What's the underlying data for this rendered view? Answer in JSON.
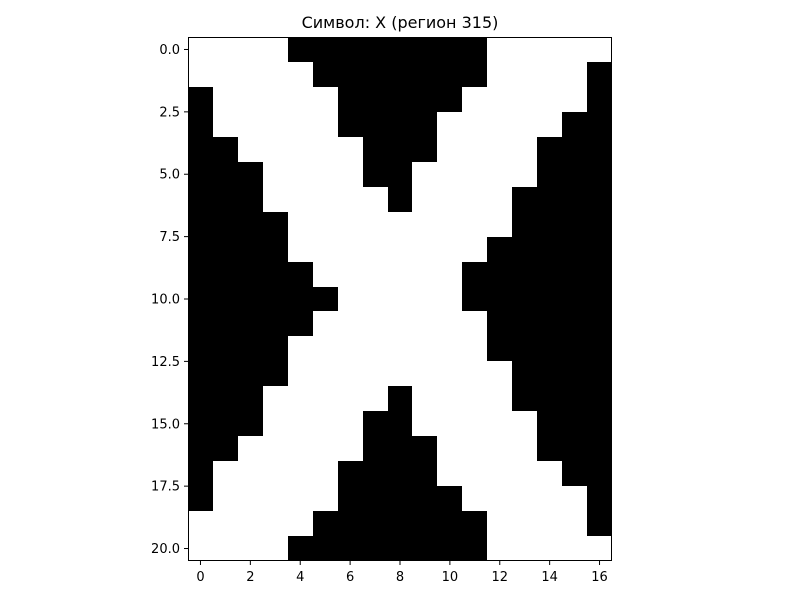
{
  "chart_data": {
    "type": "heatmap",
    "title": "Символ: X (регион 315)",
    "xlabel": "",
    "ylabel": "",
    "colormap": "binary",
    "colors": {
      "on": "#000000",
      "off": "#ffffff"
    },
    "grid": false,
    "xlim": [
      -0.5,
      16.5
    ],
    "ylim": [
      20.5,
      -0.5
    ],
    "x_ticks": [
      0,
      2,
      4,
      6,
      8,
      10,
      12,
      14,
      16
    ],
    "x_tick_labels": [
      "0",
      "2",
      "4",
      "6",
      "8",
      "10",
      "12",
      "14",
      "16"
    ],
    "y_ticks": [
      0,
      2.5,
      5,
      7.5,
      10,
      12.5,
      15,
      17.5,
      20
    ],
    "y_tick_labels": [
      "0.0",
      "2.5",
      "5.0",
      "7.5",
      "10.0",
      "12.5",
      "15.0",
      "17.5",
      "20.0"
    ],
    "rows": [
      [
        0,
        0,
        0,
        0,
        1,
        1,
        1,
        1,
        1,
        1,
        1,
        1,
        0,
        0,
        0,
        0,
        0
      ],
      [
        0,
        0,
        0,
        0,
        0,
        1,
        1,
        1,
        1,
        1,
        1,
        1,
        0,
        0,
        0,
        0,
        1
      ],
      [
        1,
        0,
        0,
        0,
        0,
        0,
        1,
        1,
        1,
        1,
        1,
        0,
        0,
        0,
        0,
        0,
        1
      ],
      [
        1,
        0,
        0,
        0,
        0,
        0,
        1,
        1,
        1,
        1,
        0,
        0,
        0,
        0,
        0,
        1,
        1
      ],
      [
        1,
        1,
        0,
        0,
        0,
        0,
        0,
        1,
        1,
        1,
        0,
        0,
        0,
        0,
        1,
        1,
        1
      ],
      [
        1,
        1,
        1,
        0,
        0,
        0,
        0,
        1,
        1,
        0,
        0,
        0,
        0,
        0,
        1,
        1,
        1
      ],
      [
        1,
        1,
        1,
        0,
        0,
        0,
        0,
        0,
        1,
        0,
        0,
        0,
        0,
        1,
        1,
        1,
        1
      ],
      [
        1,
        1,
        1,
        1,
        0,
        0,
        0,
        0,
        0,
        0,
        0,
        0,
        0,
        1,
        1,
        1,
        1
      ],
      [
        1,
        1,
        1,
        1,
        0,
        0,
        0,
        0,
        0,
        0,
        0,
        0,
        1,
        1,
        1,
        1,
        1
      ],
      [
        1,
        1,
        1,
        1,
        1,
        0,
        0,
        0,
        0,
        0,
        0,
        1,
        1,
        1,
        1,
        1,
        1
      ],
      [
        1,
        1,
        1,
        1,
        1,
        1,
        0,
        0,
        0,
        0,
        0,
        1,
        1,
        1,
        1,
        1,
        1
      ],
      [
        1,
        1,
        1,
        1,
        1,
        0,
        0,
        0,
        0,
        0,
        0,
        0,
        1,
        1,
        1,
        1,
        1
      ],
      [
        1,
        1,
        1,
        1,
        0,
        0,
        0,
        0,
        0,
        0,
        0,
        0,
        1,
        1,
        1,
        1,
        1
      ],
      [
        1,
        1,
        1,
        1,
        0,
        0,
        0,
        0,
        0,
        0,
        0,
        0,
        0,
        1,
        1,
        1,
        1
      ],
      [
        1,
        1,
        1,
        0,
        0,
        0,
        0,
        0,
        1,
        0,
        0,
        0,
        0,
        1,
        1,
        1,
        1
      ],
      [
        1,
        1,
        1,
        0,
        0,
        0,
        0,
        1,
        1,
        0,
        0,
        0,
        0,
        0,
        1,
        1,
        1
      ],
      [
        1,
        1,
        0,
        0,
        0,
        0,
        0,
        1,
        1,
        1,
        0,
        0,
        0,
        0,
        1,
        1,
        1
      ],
      [
        1,
        0,
        0,
        0,
        0,
        0,
        1,
        1,
        1,
        1,
        0,
        0,
        0,
        0,
        0,
        1,
        1
      ],
      [
        1,
        0,
        0,
        0,
        0,
        0,
        1,
        1,
        1,
        1,
        1,
        0,
        0,
        0,
        0,
        0,
        1
      ],
      [
        0,
        0,
        0,
        0,
        0,
        1,
        1,
        1,
        1,
        1,
        1,
        1,
        0,
        0,
        0,
        0,
        1
      ],
      [
        0,
        0,
        0,
        0,
        1,
        1,
        1,
        1,
        1,
        1,
        1,
        1,
        0,
        0,
        0,
        0,
        0
      ]
    ]
  }
}
